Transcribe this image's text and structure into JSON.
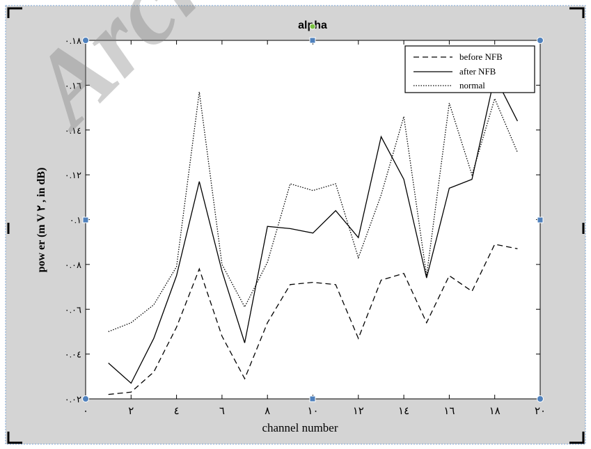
{
  "colors": {
    "figure_bg": "#d4d4d4",
    "axes_bg": "#ffffff",
    "line": "#000000",
    "handle": "#4f81bd",
    "watermark": "#9e9e9e"
  },
  "watermark_text": "Archive",
  "chart_data": {
    "type": "line",
    "title": "alpha",
    "xlabel": "channel number",
    "ylabel": "pow er (m V ٢ , in dB)",
    "xlim": [
      0,
      20
    ],
    "ylim": [
      0.02,
      0.18
    ],
    "x_ticks": [
      0,
      2,
      4,
      6,
      8,
      10,
      12,
      14,
      16,
      18,
      20
    ],
    "x_tick_labels": [
      "٠",
      "٢",
      "٤",
      "٦",
      "٨",
      "١٠",
      "١٢",
      "١٤",
      "١٦",
      "١٨",
      "٢٠"
    ],
    "y_ticks": [
      0.02,
      0.04,
      0.06,
      0.08,
      0.1,
      0.12,
      0.14,
      0.16,
      0.18
    ],
    "y_tick_labels": [
      "٠.٠٢",
      "٠.٠٤",
      "٠.٠٦",
      "٠.٠٨",
      "٠.١",
      "٠.١٢",
      "٠.١٤",
      "٠.١٦",
      "٠.١٨"
    ],
    "grid": false,
    "legend_position": "top-right",
    "x": [
      1,
      2,
      3,
      4,
      5,
      6,
      7,
      8,
      9,
      10,
      11,
      12,
      13,
      14,
      15,
      16,
      17,
      18,
      19
    ],
    "series": [
      {
        "name": "before NFB",
        "style": "dashed",
        "values": [
          0.022,
          0.023,
          0.032,
          0.052,
          0.078,
          0.048,
          0.029,
          0.054,
          0.071,
          0.072,
          0.071,
          0.047,
          0.073,
          0.076,
          0.054,
          0.075,
          0.068,
          0.089,
          0.087
        ]
      },
      {
        "name": "after NFB",
        "style": "solid",
        "values": [
          0.036,
          0.027,
          0.047,
          0.075,
          0.117,
          0.077,
          0.045,
          0.097,
          0.096,
          0.094,
          0.104,
          0.092,
          0.137,
          0.118,
          0.074,
          0.114,
          0.118,
          0.164,
          0.144
        ]
      },
      {
        "name": "normal",
        "style": "dotted",
        "values": [
          0.05,
          0.054,
          0.062,
          0.079,
          0.157,
          0.08,
          0.061,
          0.081,
          0.116,
          0.113,
          0.116,
          0.083,
          0.111,
          0.146,
          0.075,
          0.152,
          0.12,
          0.154,
          0.13
        ]
      }
    ]
  }
}
